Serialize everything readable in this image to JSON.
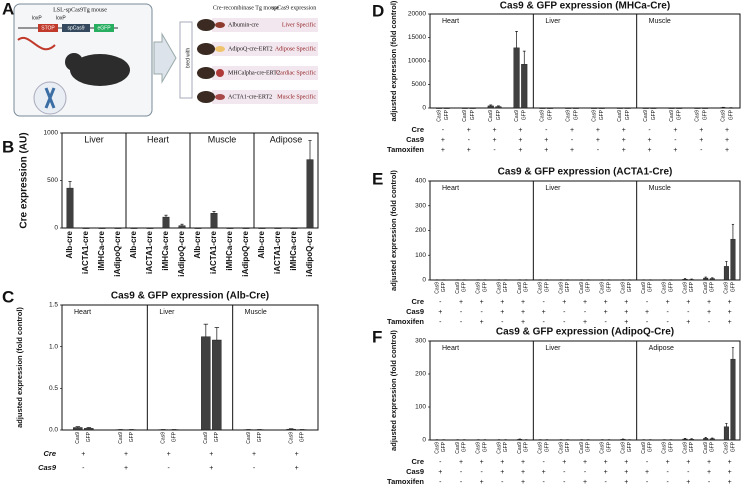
{
  "panel_a": {
    "panel": "A",
    "source_title": "LSL-spCas9Tg mouse",
    "loxp": [
      "loxP",
      "loxP"
    ],
    "construct": [
      "STOP",
      "spCas9",
      "eGFP"
    ],
    "arrow_label": "bred with",
    "cre_title": "Cre-recombinase Tg mouse",
    "expression_title": "spCas9 expression",
    "lines": [
      {
        "name": "Albumin-cre",
        "expression": "Liver Specific"
      },
      {
        "name": "AdipoQ-cre-ERT2",
        "expression": "Adipose Specific"
      },
      {
        "name": "MHCalpha-cre-ERT2",
        "expression": "Cardiac Specific"
      },
      {
        "name": "ACTA1-cre-ERT2",
        "expression": "Muscle Specific"
      }
    ]
  },
  "chart_data": [
    {
      "type": "bar",
      "panel": "B",
      "y_label": "Cre expression (AU)",
      "ylim": [
        0,
        1000
      ],
      "yticks": [
        0,
        500,
        1000
      ],
      "color": "#404040",
      "facets": [
        {
          "name": "Liver",
          "categories": [
            "Alb-cre",
            "iACTA1-cre",
            "iMHCa-cre",
            "iAdipoQ-cre"
          ],
          "values": [
            420,
            0,
            0,
            0
          ],
          "errors": [
            70,
            0,
            0,
            0
          ]
        },
        {
          "name": "Heart",
          "categories": [
            "Alb-cre",
            "iACTA1-cre",
            "iMHCa-cre",
            "iAdipoQ-cre"
          ],
          "values": [
            0,
            0,
            115,
            25
          ],
          "errors": [
            0,
            0,
            20,
            15
          ]
        },
        {
          "name": "Muscle",
          "categories": [
            "Alb-cre",
            "iACTA1-cre",
            "iMHCa-cre",
            "iAdipoQ-cre"
          ],
          "values": [
            0,
            155,
            0,
            0
          ],
          "errors": [
            0,
            20,
            0,
            0
          ]
        },
        {
          "name": "Adipose",
          "categories": [
            "Alb-cre",
            "iACTA1-cre",
            "iMHCa-cre",
            "iAdipoQ-cre"
          ],
          "values": [
            0,
            0,
            0,
            720
          ],
          "errors": [
            0,
            0,
            0,
            200
          ]
        }
      ]
    },
    {
      "type": "bar",
      "panel": "C",
      "title": "Cas9 & GFP expression (Alb-Cre)",
      "y_label": "adjusted expression (fold control)",
      "ylim": [
        0,
        1.5
      ],
      "yticks": [
        {
          "value": 0,
          "label": "0.0"
        },
        0.5,
        {
          "value": 1,
          "label": "1.0"
        },
        1.5
      ],
      "color": "#404040",
      "condition_rows": [
        "Cre",
        "Cas9"
      ],
      "facets": [
        {
          "name": "Heart",
          "categories": [
            "Cas9",
            "GFP",
            "Cas9",
            "GFP"
          ],
          "values": [
            0.03,
            0.02,
            0.005,
            0.005
          ],
          "errors": [
            0.01,
            0.01,
            0,
            0
          ],
          "conditions": [
            [
              "+",
              "+"
            ],
            [
              "-",
              "+"
            ]
          ]
        },
        {
          "name": "Liver",
          "categories": [
            "Cas9",
            "GFP",
            "Cas9",
            "GFP"
          ],
          "values": [
            0.005,
            0.005,
            1.12,
            1.08
          ],
          "errors": [
            0,
            0,
            0.15,
            0.15
          ],
          "conditions": [
            [
              "+",
              "+"
            ],
            [
              "-",
              "+"
            ]
          ]
        },
        {
          "name": "Muscle",
          "categories": [
            "Cas9",
            "GFP",
            "Cas9",
            "GFP"
          ],
          "values": [
            0.005,
            0.005,
            0.01,
            0.005
          ],
          "errors": [
            0,
            0,
            0.005,
            0
          ],
          "conditions": [
            [
              "+",
              "+"
            ],
            [
              "-",
              "+"
            ]
          ]
        }
      ]
    },
    {
      "type": "bar",
      "panel": "D",
      "title": "Cas9 & GFP expression (MHCa-Cre)",
      "y_label": "adjusted expression (fold control)",
      "ylim": [
        0,
        20000
      ],
      "yticks": [
        0,
        5000,
        10000,
        15000,
        20000
      ],
      "color": "#404040",
      "condition_rows": [
        "Cre",
        "Cas9",
        "Tamoxifen"
      ],
      "facets": [
        {
          "name": "Heart",
          "categories": [
            "Cas9",
            "GFP",
            "Cas9",
            "GFP",
            "Cas9",
            "GFP",
            "Cas9",
            "GFP"
          ],
          "values": [
            5,
            5,
            5,
            5,
            450,
            300,
            12800,
            9300
          ],
          "errors": [
            0,
            0,
            0,
            0,
            200,
            150,
            3500,
            2800
          ],
          "conditions": [
            [
              "-",
              "+",
              "+",
              "+"
            ],
            [
              "+",
              "-",
              "+",
              "+"
            ],
            [
              "+",
              "+",
              "-",
              "+"
            ]
          ]
        },
        {
          "name": "Liver",
          "categories": [
            "Cas9",
            "GFP",
            "Cas9",
            "GFP",
            "Cas9",
            "GFP",
            "Cas9",
            "GFP"
          ],
          "values": [
            5,
            5,
            5,
            5,
            5,
            5,
            10,
            10
          ],
          "errors": [
            0,
            0,
            0,
            0,
            0,
            0,
            0,
            0
          ],
          "conditions": [
            [
              "-",
              "+",
              "+",
              "+"
            ],
            [
              "+",
              "-",
              "+",
              "+"
            ],
            [
              "+",
              "+",
              "-",
              "+"
            ]
          ]
        },
        {
          "name": "Muscle",
          "categories": [
            "Cas9",
            "GFP",
            "Cas9",
            "GFP",
            "Cas9",
            "GFP",
            "Cas9",
            "GFP"
          ],
          "values": [
            5,
            5,
            5,
            5,
            5,
            5,
            100,
            50
          ],
          "errors": [
            0,
            0,
            0,
            0,
            0,
            0,
            50,
            30
          ],
          "conditions": [
            [
              "-",
              "+",
              "+",
              "+"
            ],
            [
              "+",
              "-",
              "+",
              "+"
            ],
            [
              "+",
              "+",
              "-",
              "+"
            ]
          ]
        }
      ]
    },
    {
      "type": "bar",
      "panel": "E",
      "title": "Cas9 & GFP expression (ACTA1-Cre)",
      "y_label": "adjusted expression (fold control)",
      "ylim": [
        0,
        400
      ],
      "yticks": [
        0,
        100,
        200,
        300,
        400
      ],
      "color": "#404040",
      "condition_rows": [
        "Cre",
        "Cas9",
        "Tamoxifen"
      ],
      "facets": [
        {
          "name": "Heart",
          "categories": [
            "Cas9",
            "GFP",
            "Cas9",
            "GFP",
            "Cas9",
            "GFP",
            "Cas9",
            "GFP",
            "Cas9",
            "GFP"
          ],
          "values": [
            1,
            1,
            1,
            1,
            1,
            1,
            1,
            1,
            1,
            1
          ],
          "errors": [
            0,
            0,
            0,
            0,
            0,
            0,
            0,
            0,
            0,
            0
          ],
          "conditions": [
            [
              "-",
              "+",
              "+",
              "+",
              "+"
            ],
            [
              "+",
              "-",
              "-",
              "+",
              "+"
            ],
            [
              "-",
              "-",
              "+",
              "-",
              "+"
            ]
          ]
        },
        {
          "name": "Liver",
          "categories": [
            "Cas9",
            "GFP",
            "Cas9",
            "GFP",
            "Cas9",
            "GFP",
            "Cas9",
            "GFP",
            "Cas9",
            "GFP"
          ],
          "values": [
            1,
            1,
            1,
            1,
            1,
            1,
            1,
            1,
            1,
            1
          ],
          "errors": [
            0,
            0,
            0,
            0,
            0,
            0,
            0,
            0,
            0,
            0
          ],
          "conditions": [
            [
              "-",
              "+",
              "+",
              "+",
              "+"
            ],
            [
              "+",
              "-",
              "-",
              "+",
              "+"
            ],
            [
              "-",
              "-",
              "+",
              "-",
              "+"
            ]
          ]
        },
        {
          "name": "Muscle",
          "categories": [
            "Cas9",
            "GFP",
            "Cas9",
            "GFP",
            "Cas9",
            "GFP",
            "Cas9",
            "GFP",
            "Cas9",
            "GFP"
          ],
          "values": [
            1,
            1,
            1,
            1,
            3,
            2,
            8,
            6,
            55,
            165
          ],
          "errors": [
            0,
            0,
            0,
            0,
            3,
            2,
            4,
            3,
            20,
            60
          ],
          "conditions": [
            [
              "-",
              "+",
              "+",
              "+",
              "+"
            ],
            [
              "+",
              "-",
              "-",
              "+",
              "+"
            ],
            [
              "-",
              "-",
              "+",
              "-",
              "+"
            ]
          ]
        }
      ]
    },
    {
      "type": "bar",
      "panel": "F",
      "title": "Cas9 & GFP expression (AdipoQ-Cre)",
      "y_label": "adjusted expression (fold control)",
      "ylim": [
        0,
        300
      ],
      "yticks": [
        0,
        100,
        200,
        300
      ],
      "color": "#404040",
      "condition_rows": [
        "Cre",
        "Cas9",
        "Tamoxifen"
      ],
      "facets": [
        {
          "name": "Heart",
          "categories": [
            "Cas9",
            "GFP",
            "Cas9",
            "GFP",
            "Cas9",
            "GFP",
            "Cas9",
            "GFP",
            "Cas9",
            "GFP"
          ],
          "values": [
            1,
            1,
            1,
            1,
            1,
            1,
            1,
            1,
            2,
            1
          ],
          "errors": [
            0,
            0,
            0,
            0,
            0,
            0,
            0,
            0,
            1,
            0
          ],
          "conditions": [
            [
              "-",
              "+",
              "+",
              "+",
              "+"
            ],
            [
              "+",
              "-",
              "-",
              "+",
              "+"
            ],
            [
              "-",
              "-",
              "+",
              "-",
              "+"
            ]
          ]
        },
        {
          "name": "Liver",
          "categories": [
            "Cas9",
            "GFP",
            "Cas9",
            "GFP",
            "Cas9",
            "GFP",
            "Cas9",
            "GFP",
            "Cas9",
            "GFP"
          ],
          "values": [
            1,
            1,
            1,
            1,
            1,
            1,
            1,
            1,
            2,
            1
          ],
          "errors": [
            0,
            0,
            0,
            0,
            0,
            0,
            0,
            0,
            1,
            0
          ],
          "conditions": [
            [
              "-",
              "+",
              "+",
              "+",
              "+"
            ],
            [
              "+",
              "-",
              "-",
              "+",
              "+"
            ],
            [
              "-",
              "-",
              "+",
              "-",
              "+"
            ]
          ]
        },
        {
          "name": "Adipose",
          "categories": [
            "Cas9",
            "GFP",
            "Cas9",
            "GFP",
            "Cas9",
            "GFP",
            "Cas9",
            "GFP",
            "Cas9",
            "GFP"
          ],
          "values": [
            1,
            1,
            1,
            1,
            3,
            2,
            5,
            4,
            40,
            245
          ],
          "errors": [
            0,
            0,
            0,
            0,
            2,
            2,
            3,
            2,
            10,
            35
          ],
          "conditions": [
            [
              "-",
              "+",
              "+",
              "+",
              "+"
            ],
            [
              "+",
              "-",
              "-",
              "+",
              "+"
            ],
            [
              "-",
              "-",
              "+",
              "-",
              "+"
            ]
          ]
        }
      ]
    }
  ]
}
